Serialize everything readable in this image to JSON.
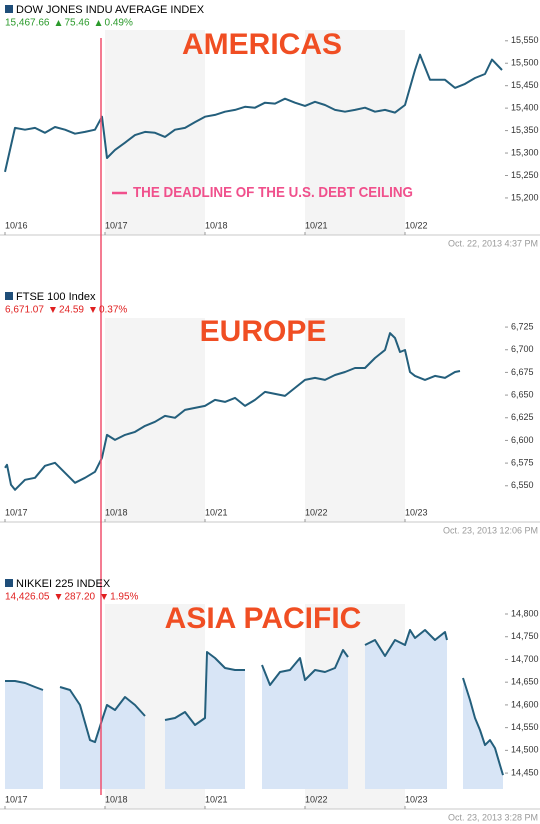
{
  "chart_data": [
    {
      "type": "line",
      "title": "DOW JONES INDU AVERAGE INDEX",
      "quote": {
        "last": "15,467.66",
        "change": "75.46",
        "change_pct": "0.49%"
      },
      "timestamp": "Oct. 22, 2013 4:37 PM",
      "annotations": [
        "AMERICAS",
        "THE DEADLINE OF THE U.S. DEBT CEILING"
      ],
      "color": "#245f7c",
      "x": [
        0,
        0.1,
        0.2,
        0.3,
        0.4,
        0.5,
        0.6,
        0.7,
        0.8,
        0.9,
        0.97,
        1.02,
        1.1,
        1.2,
        1.3,
        1.4,
        1.5,
        1.6,
        1.7,
        1.8,
        1.9,
        2.0,
        2.1,
        2.2,
        2.3,
        2.4,
        2.5,
        2.6,
        2.7,
        2.8,
        2.9,
        3.0,
        3.1,
        3.2,
        3.3,
        3.4,
        3.5,
        3.6,
        3.7,
        3.8,
        3.9,
        4.0,
        4.1,
        4.15,
        4.25,
        4.4,
        4.5,
        4.6,
        4.7,
        4.8,
        4.87,
        4.97
      ],
      "values": [
        15258,
        15356,
        15352,
        15356,
        15345,
        15358,
        15352,
        15343,
        15347,
        15352,
        15381,
        15289,
        15307,
        15323,
        15340,
        15347,
        15345,
        15336,
        15352,
        15356,
        15369,
        15381,
        15385,
        15392,
        15396,
        15403,
        15401,
        15412,
        15410,
        15421,
        15412,
        15405,
        15414,
        15407,
        15396,
        15392,
        15396,
        15401,
        15392,
        15396,
        15390,
        15407,
        15485,
        15519,
        15463,
        15463,
        15445,
        15454,
        15467,
        15476,
        15508,
        15485
      ],
      "xlim": [
        0,
        5
      ],
      "ylim": [
        15162,
        15574
      ],
      "xticks": [
        {
          "value": 0,
          "label": "10/16"
        },
        {
          "value": 1,
          "label": "10/17"
        },
        {
          "value": 2,
          "label": "10/18"
        },
        {
          "value": 3,
          "label": "10/21"
        },
        {
          "value": 4,
          "label": "10/22"
        }
      ],
      "yticks": [
        {
          "value": 15200,
          "label": "15,200"
        },
        {
          "value": 15250,
          "label": "15,250"
        },
        {
          "value": 15300,
          "label": "15,300"
        },
        {
          "value": 15350,
          "label": "15,350"
        },
        {
          "value": 15400,
          "label": "15,400"
        },
        {
          "value": 15450,
          "label": "15,450"
        },
        {
          "value": 15500,
          "label": "15,500"
        },
        {
          "value": 15550,
          "label": "15,550"
        }
      ]
    },
    {
      "type": "line",
      "title": "FTSE 100 Index",
      "quote": {
        "last": "6,671.07",
        "change": "24.59",
        "change_pct": "0.37%"
      },
      "timestamp": "Oct. 23, 2013 12:06 PM",
      "annotations": [
        "EUROPE"
      ],
      "color": "#245f7c",
      "x": [
        0,
        0.02,
        0.06,
        0.1,
        0.2,
        0.3,
        0.4,
        0.5,
        0.6,
        0.7,
        0.8,
        0.9,
        0.97,
        1.02,
        1.1,
        1.2,
        1.3,
        1.4,
        1.5,
        1.6,
        1.7,
        1.8,
        1.9,
        2.0,
        2.1,
        2.2,
        2.3,
        2.4,
        2.5,
        2.6,
        2.8,
        2.9,
        3.0,
        3.1,
        3.2,
        3.3,
        3.4,
        3.5,
        3.6,
        3.7,
        3.8,
        3.85,
        3.9,
        3.95,
        4.0,
        4.05,
        4.1,
        4.2,
        4.3,
        4.4,
        4.5,
        4.55
      ],
      "values": [
        6569.8,
        6573.1,
        6551.1,
        6545.6,
        6556.6,
        6558.8,
        6572.0,
        6575.3,
        6564.3,
        6553.3,
        6558.8,
        6565.4,
        6580.8,
        6606.1,
        6600.6,
        6606.1,
        6609.4,
        6616.0,
        6620.5,
        6627.1,
        6624.9,
        6633.7,
        6635.9,
        6638.1,
        6644.7,
        6642.5,
        6646.9,
        6638.1,
        6644.7,
        6653.5,
        6649.1,
        6657.9,
        6666.7,
        6668.9,
        6666.7,
        6672.2,
        6675.5,
        6679.9,
        6679.9,
        6690.9,
        6699.7,
        6718.4,
        6712.9,
        6697.5,
        6699.7,
        6675.5,
        6671.1,
        6666.7,
        6671.1,
        6668.9,
        6675.5,
        6676.6
      ],
      "xlim": [
        0,
        5
      ],
      "ylim": [
        6531,
        6735
      ],
      "xticks": [
        {
          "value": 0,
          "label": "10/17"
        },
        {
          "value": 1,
          "label": "10/18"
        },
        {
          "value": 2,
          "label": "10/21"
        },
        {
          "value": 3,
          "label": "10/22"
        },
        {
          "value": 4,
          "label": "10/23"
        }
      ],
      "yticks": [
        {
          "value": 6550,
          "label": "6,550"
        },
        {
          "value": 6575,
          "label": "6,575"
        },
        {
          "value": 6600,
          "label": "6,600"
        },
        {
          "value": 6625,
          "label": "6,625"
        },
        {
          "value": 6650,
          "label": "6,650"
        },
        {
          "value": 6675,
          "label": "6,675"
        },
        {
          "value": 6700,
          "label": "6,700"
        },
        {
          "value": 6725,
          "label": "6,725"
        }
      ]
    },
    {
      "type": "area",
      "title": "NIKKEI 225 INDEX",
      "quote": {
        "last": "14,426.05",
        "change": "287.20",
        "change_pct": "1.95%"
      },
      "timestamp": "Oct. 23, 2013 3:28 PM",
      "annotations": [
        "ASIA PACIFIC"
      ],
      "color": "#245f7c",
      "fill": "#d8e5f6",
      "x": [
        0,
        0.1,
        0.2,
        0.3,
        0.38,
        0.45,
        0.55,
        0.65,
        0.75,
        0.85,
        0.9,
        0.97,
        1.02,
        1.1,
        1.2,
        1.3,
        1.4,
        1.5,
        1.6,
        1.7,
        1.8,
        1.9,
        2.0,
        2.02,
        2.1,
        2.2,
        2.3,
        2.4,
        2.5,
        2.57,
        2.65,
        2.75,
        2.85,
        2.95,
        3.0,
        3.1,
        3.2,
        3.3,
        3.38,
        3.43,
        3.5,
        3.6,
        3.7,
        3.8,
        3.9,
        4.0,
        4.05,
        4.1,
        4.2,
        4.3,
        4.4,
        4.42,
        4.5,
        4.58,
        4.65,
        4.7,
        4.75,
        4.8,
        4.85,
        4.9,
        4.95,
        4.98
      ],
      "values": [
        14652.5,
        14652.5,
        14648.1,
        14639.3,
        14632.7,
        null,
        14639.3,
        14632.7,
        14599.7,
        14522.6,
        14518.2,
        14566.7,
        14599.7,
        14588.7,
        14617.3,
        14599.7,
        14575.5,
        null,
        14566.7,
        14571.1,
        14584.3,
        14555.7,
        14571.1,
        14716.4,
        14703.1,
        14681.1,
        14676.7,
        14676.7,
        null,
        14687.7,
        14643.7,
        14672.3,
        14676.7,
        14703.1,
        14654.7,
        14676.7,
        14672.3,
        14681.1,
        14720.8,
        14705.4,
        null,
        14731.8,
        14742.8,
        14707.6,
        14742.8,
        14731.8,
        14764.8,
        14747.2,
        14764.8,
        14742.8,
        14760.4,
        14742.8,
        null,
        14659.1,
        14610.7,
        14571.1,
        14544.7,
        14511.6,
        14522.6,
        14505.0,
        14467.6,
        14445.6
      ],
      "xlim": [
        0,
        5
      ],
      "ylim": [
        14415,
        14822
      ],
      "xticks": [
        {
          "value": 0,
          "label": "10/17"
        },
        {
          "value": 1,
          "label": "10/18"
        },
        {
          "value": 2,
          "label": "10/21"
        },
        {
          "value": 3,
          "label": "10/22"
        },
        {
          "value": 4,
          "label": "10/23"
        }
      ],
      "yticks": [
        {
          "value": 14450,
          "label": "14,450"
        },
        {
          "value": 14500,
          "label": "14,500"
        },
        {
          "value": 14550,
          "label": "14,550"
        },
        {
          "value": 14600,
          "label": "14,600"
        },
        {
          "value": 14650,
          "label": "14,650"
        },
        {
          "value": 14700,
          "label": "14,700"
        },
        {
          "value": 14750,
          "label": "14,750"
        },
        {
          "value": 14800,
          "label": "14,800"
        }
      ]
    }
  ]
}
